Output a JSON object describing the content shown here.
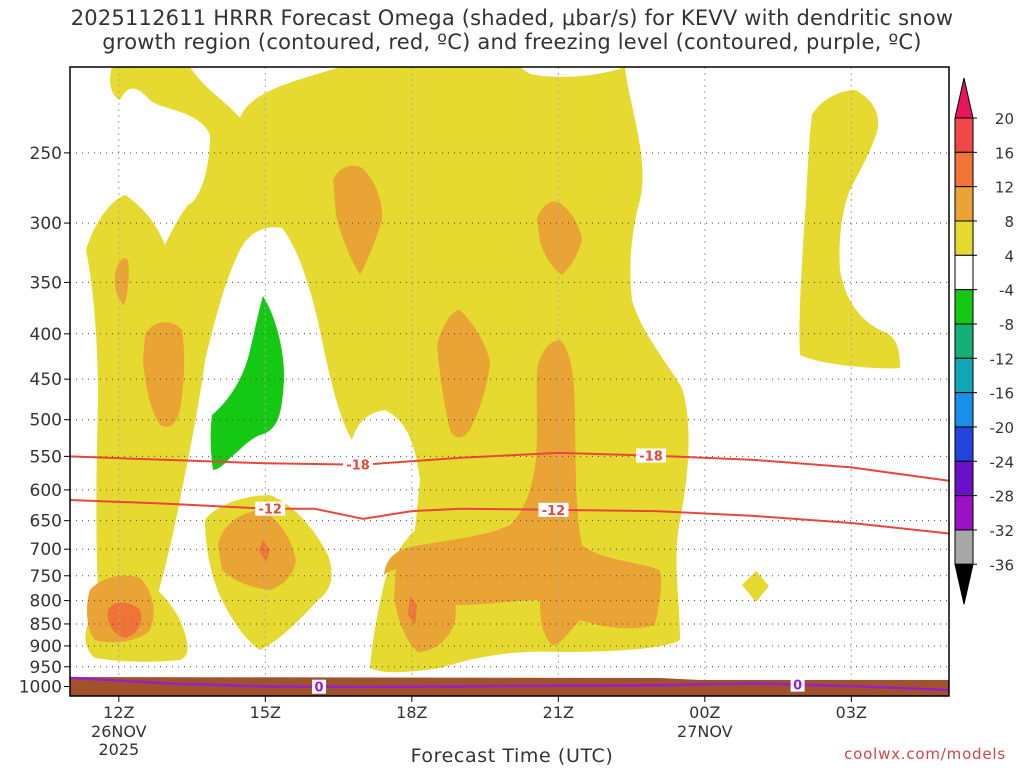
{
  "chart_data": {
    "type": "heatmap",
    "title_line1": "2025112611 HRRR Forecast Omega (shaded, μbar/s) for KEVV with dendritic snow",
    "title_line2": "growth region (contoured, red, ºC) and freezing level (contoured, purple, ºC)",
    "xlabel": "Forecast Time (UTC)",
    "credit": "coolwx.com/models",
    "x_ticks": [
      {
        "hour": 12,
        "label": "12Z",
        "sub1": "26NOV",
        "sub2": "2025"
      },
      {
        "hour": 15,
        "label": "15Z",
        "sub1": "",
        "sub2": ""
      },
      {
        "hour": 18,
        "label": "18Z",
        "sub1": "",
        "sub2": ""
      },
      {
        "hour": 21,
        "label": "21Z",
        "sub1": "",
        "sub2": ""
      },
      {
        "hour": 24,
        "label": "00Z",
        "sub1": "27NOV",
        "sub2": ""
      },
      {
        "hour": 27,
        "label": "03Z",
        "sub1": "",
        "sub2": ""
      }
    ],
    "xlim": [
      11,
      29
    ],
    "ylim_hpa": [
      1025,
      200
    ],
    "y_ticks": [
      250,
      300,
      350,
      400,
      450,
      500,
      550,
      600,
      650,
      700,
      750,
      800,
      850,
      900,
      950,
      1000
    ],
    "colorbar": {
      "labels": [
        "20",
        "16",
        "12",
        "8",
        "4",
        "-4",
        "-8",
        "-12",
        "-16",
        "-20",
        "-24",
        "-28",
        "-32",
        "-36"
      ],
      "colors": [
        "#e8155a",
        "#f04848",
        "#f07438",
        "#eaa435",
        "#e6da30",
        "#ffffff",
        "#14c814",
        "#14b078",
        "#10a8b8",
        "#1a8fe8",
        "#2244dd",
        "#6a10c8",
        "#9a12c4",
        "#a8a8a8",
        "#000000"
      ]
    },
    "contours": [
      {
        "label": "-18",
        "type": "dendritic_snow_growth",
        "color": "#e8473c",
        "points": [
          [
            11.0,
            550
          ],
          [
            13.0,
            555
          ],
          [
            15.0,
            560
          ],
          [
            17.0,
            562
          ],
          [
            19.0,
            552
          ],
          [
            21.0,
            545
          ],
          [
            23.0,
            549
          ],
          [
            25.0,
            555
          ],
          [
            27.0,
            566
          ],
          [
            29.0,
            586
          ]
        ],
        "label_hours": [
          16.9,
          22.9
        ]
      },
      {
        "label": "-12",
        "type": "dendritic_snow_growth",
        "color": "#e8473c",
        "points": [
          [
            11.0,
            616
          ],
          [
            13.0,
            622
          ],
          [
            15.0,
            630
          ],
          [
            16.0,
            630
          ],
          [
            17.0,
            647
          ],
          [
            18.0,
            634
          ],
          [
            19.0,
            630
          ],
          [
            21.0,
            632
          ],
          [
            23.0,
            634
          ],
          [
            25.0,
            642
          ],
          [
            27.0,
            654
          ],
          [
            29.0,
            672
          ]
        ],
        "label_hours": [
          15.1,
          20.9
        ]
      },
      {
        "label": "0",
        "type": "freezing_level",
        "color": "#9a1ccc",
        "points": [
          [
            11.0,
            978
          ],
          [
            13.0,
            992
          ],
          [
            15.0,
            1000
          ],
          [
            17.0,
            1001
          ],
          [
            19.0,
            1000
          ],
          [
            21.0,
            998
          ],
          [
            23.0,
            997
          ],
          [
            25.0,
            992
          ],
          [
            27.0,
            999
          ],
          [
            29.0,
            1009
          ]
        ],
        "label_hours": [
          16.1,
          25.9
        ]
      }
    ],
    "shaded_regions": [
      {
        "band": "4 to 8",
        "color": "#e6da30",
        "areas": [
          "upper_column_main",
          "left_low_lobe",
          "center_15z_lobe",
          "center_right_block",
          "right_upper",
          "right_small_800hPa"
        ]
      },
      {
        "band": "8 to 12",
        "color": "#eaa435",
        "areas": [
          "12z_850hPa",
          "13z_400hPa",
          "12z_350hPa",
          "15z_700hPa",
          "17z_300hPa",
          "19z_450hPa",
          "21z_300hPa",
          "20z_850hPa_to_22z_500hPa",
          "18z_850hPa"
        ]
      },
      {
        "band": "12 to 16",
        "color": "#f07438",
        "areas": [
          "12z_850hPa_core",
          "15z_720hPa_core",
          "18z_830hPa_core"
        ]
      },
      {
        "band": "-8 to -4",
        "color": "#14c814",
        "areas": [
          "14z_400_to_580hPa"
        ]
      }
    ],
    "ground_color": "#a0522d"
  }
}
